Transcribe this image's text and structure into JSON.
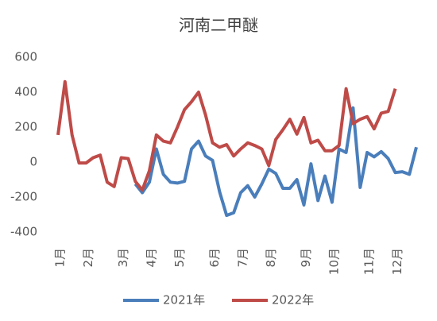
{
  "chart_data": {
    "type": "line",
    "title": "河南二甲醚",
    "categories": [
      "1月",
      null,
      null,
      null,
      "2月",
      null,
      null,
      null,
      null,
      "3月",
      null,
      null,
      null,
      "4月",
      null,
      null,
      null,
      "5月",
      null,
      null,
      null,
      null,
      "6月",
      null,
      null,
      null,
      "7月",
      null,
      null,
      null,
      "8月",
      null,
      null,
      null,
      null,
      "9月",
      null,
      null,
      null,
      "10月",
      null,
      null,
      null,
      null,
      "11月",
      null,
      null,
      null,
      "12月",
      null,
      null,
      null
    ],
    "series": [
      {
        "name": "2021年",
        "color": "#4a7ebb",
        "values": [
          null,
          null,
          null,
          null,
          null,
          null,
          null,
          null,
          null,
          null,
          null,
          -125,
          -175,
          -115,
          75,
          -70,
          -115,
          -120,
          -110,
          75,
          120,
          35,
          10,
          -170,
          -305,
          -290,
          -175,
          -135,
          -200,
          -125,
          -40,
          -65,
          -150,
          -150,
          -100,
          -245,
          -10,
          -220,
          -80,
          -230,
          75,
          55,
          310,
          -145,
          55,
          30,
          60,
          20,
          -60,
          -55,
          -70,
          85
        ]
      },
      {
        "name": "2022年",
        "color": "#be4b48",
        "values": [
          155,
          460,
          155,
          -5,
          -5,
          25,
          40,
          -115,
          -140,
          25,
          20,
          -110,
          -160,
          -50,
          155,
          120,
          110,
          200,
          300,
          345,
          400,
          270,
          110,
          85,
          100,
          35,
          75,
          110,
          95,
          75,
          -20,
          130,
          185,
          245,
          160,
          255,
          110,
          125,
          65,
          65,
          95,
          420,
          220,
          245,
          260,
          190,
          280,
          290,
          420,
          null,
          null,
          null
        ]
      }
    ],
    "ylim": [
      -400,
      600
    ],
    "yticks": [
      -400,
      -200,
      0,
      200,
      400,
      600
    ]
  }
}
